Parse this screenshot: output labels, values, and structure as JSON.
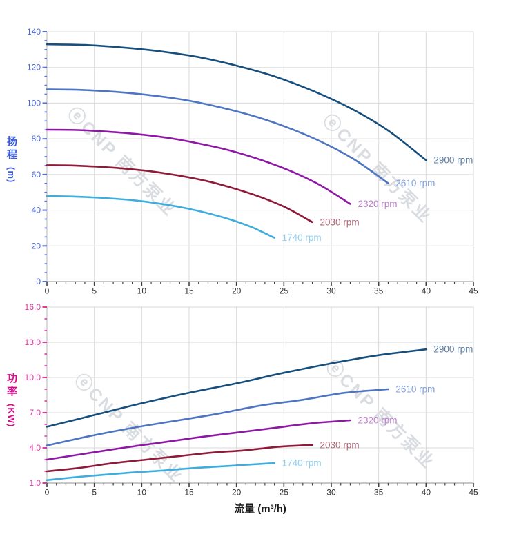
{
  "watermark": {
    "text": "ⓔCNP 南方泵业",
    "color": "rgba(128,138,152,0.30)"
  },
  "x_axis_title": "流量 (m³/h)",
  "chart_data": [
    {
      "type": "line",
      "name": "head-vs-flow-chart",
      "title": "",
      "xlabel": "流量 (m³/h)",
      "ylabel": "扬程 (m)",
      "y_title": "扬程",
      "y_unit": "(m)",
      "xlim": [
        0,
        45
      ],
      "ylim": [
        0,
        140
      ],
      "x_major_step": 5,
      "x_minor_step": 1,
      "y_major_step": 20,
      "y_minor_step": 5,
      "x_tick_labels": [
        "0",
        "5",
        "10",
        "15",
        "20",
        "25",
        "30",
        "35",
        "40",
        "45"
      ],
      "y_tick_labels": [
        "0",
        "20",
        "40",
        "60",
        "80",
        "100",
        "120",
        "140"
      ],
      "grid": true,
      "legend_position": "end-of-curve",
      "axis_color": "#3b5bd7",
      "tick_color": "#5873d6",
      "tick_label_color": "#4a66d8",
      "series": [
        {
          "name": "2900 rpm",
          "color": "#164e7d",
          "label_color": "#5c7da3",
          "points": [
            [
              0,
              133
            ],
            [
              4,
              132.6
            ],
            [
              8,
              131.2
            ],
            [
              12,
              129
            ],
            [
              16,
              125.8
            ],
            [
              20,
              121
            ],
            [
              24,
              115
            ],
            [
              28,
              107
            ],
            [
              32,
              97.2
            ],
            [
              36,
              84.6
            ],
            [
              40,
              68
            ]
          ]
        },
        {
          "name": "2610 rpm",
          "color": "#4e75c2",
          "label_color": "#82a0d8",
          "points": [
            [
              0,
              107.7
            ],
            [
              3.6,
              107.4
            ],
            [
              7.2,
              106.3
            ],
            [
              10.8,
              104.5
            ],
            [
              14.4,
              101.9
            ],
            [
              18,
              98
            ],
            [
              21.6,
              93.1
            ],
            [
              25.2,
              86.7
            ],
            [
              28.8,
              78.7
            ],
            [
              32.4,
              68.5
            ],
            [
              36,
              55.1
            ]
          ]
        },
        {
          "name": "2320 rpm",
          "color": "#8e17a5",
          "label_color": "#bc7fcb",
          "points": [
            [
              0,
              85.1
            ],
            [
              3.2,
              84.9
            ],
            [
              6.4,
              84
            ],
            [
              9.6,
              82.6
            ],
            [
              12.8,
              80.5
            ],
            [
              16,
              77.4
            ],
            [
              19.2,
              73.6
            ],
            [
              22.4,
              68.5
            ],
            [
              25.6,
              62.2
            ],
            [
              28.8,
              54.1
            ],
            [
              32,
              43.5
            ]
          ]
        },
        {
          "name": "2030 rpm",
          "color": "#8e1b39",
          "label_color": "#ab6878",
          "points": [
            [
              0,
              65.2
            ],
            [
              2.8,
              65
            ],
            [
              5.6,
              64.3
            ],
            [
              8.4,
              63.2
            ],
            [
              11.2,
              61.6
            ],
            [
              14,
              59.3
            ],
            [
              16.8,
              56.4
            ],
            [
              19.6,
              52.4
            ],
            [
              22.4,
              47.6
            ],
            [
              25.2,
              41.5
            ],
            [
              28,
              33.3
            ]
          ]
        },
        {
          "name": "1740 rpm",
          "color": "#3dadde",
          "label_color": "#8fcdee",
          "points": [
            [
              0,
              47.9
            ],
            [
              2.4,
              47.7
            ],
            [
              4.8,
              47.2
            ],
            [
              7.2,
              46.4
            ],
            [
              9.6,
              45.3
            ],
            [
              12,
              43.6
            ],
            [
              14.4,
              41.4
            ],
            [
              16.8,
              38.5
            ],
            [
              19.2,
              35
            ],
            [
              21.6,
              30.5
            ],
            [
              24,
              24.5
            ]
          ]
        }
      ]
    },
    {
      "type": "line",
      "name": "power-vs-flow-chart",
      "title": "",
      "xlabel": "流量 (m³/h)",
      "ylabel": "功率 (KW)",
      "y_title": "功率",
      "y_unit": "(KW)",
      "xlim": [
        0,
        45
      ],
      "ylim": [
        1,
        16
      ],
      "x_major_step": 5,
      "x_minor_step": 1,
      "y_major_step": 3,
      "y_minor_step": 1,
      "x_tick_labels": [
        "0",
        "5",
        "10",
        "15",
        "20",
        "25",
        "30",
        "35",
        "40",
        "45"
      ],
      "y_tick_labels": [
        "1.0",
        "4.0",
        "7.0",
        "10.0",
        "13.0",
        "16.0"
      ],
      "grid": true,
      "legend_position": "end-of-curve",
      "axis_color": "#cf1086",
      "tick_color": "#e0399f",
      "tick_label_color": "#e3389e",
      "series": [
        {
          "name": "2900 rpm",
          "color": "#164e7d",
          "label_color": "#5c7da3",
          "points": [
            [
              0,
              5.8
            ],
            [
              5,
              6.8
            ],
            [
              10,
              7.8
            ],
            [
              15,
              8.7
            ],
            [
              20,
              9.5
            ],
            [
              25,
              10.4
            ],
            [
              30,
              11.2
            ],
            [
              35,
              11.9
            ],
            [
              40,
              12.4
            ]
          ]
        },
        {
          "name": "2610 rpm",
          "color": "#4e75c2",
          "label_color": "#82a0d8",
          "points": [
            [
              0,
              4.2
            ],
            [
              4.5,
              5
            ],
            [
              9,
              5.7
            ],
            [
              13.5,
              6.3
            ],
            [
              18,
              6.9
            ],
            [
              22.5,
              7.6
            ],
            [
              27,
              8.1
            ],
            [
              31.5,
              8.7
            ],
            [
              36,
              9
            ]
          ]
        },
        {
          "name": "2320 rpm",
          "color": "#8e17a5",
          "label_color": "#bc7fcb",
          "points": [
            [
              0,
              3
            ],
            [
              4,
              3.5
            ],
            [
              8,
              4
            ],
            [
              12,
              4.45
            ],
            [
              16,
              4.9
            ],
            [
              20,
              5.3
            ],
            [
              24,
              5.7
            ],
            [
              28,
              6.1
            ],
            [
              32,
              6.35
            ]
          ]
        },
        {
          "name": "2030 rpm",
          "color": "#8e1b39",
          "label_color": "#ab6878",
          "points": [
            [
              0,
              2
            ],
            [
              3.5,
              2.3
            ],
            [
              7,
              2.7
            ],
            [
              10.5,
              3
            ],
            [
              14,
              3.3
            ],
            [
              17.5,
              3.6
            ],
            [
              21,
              3.8
            ],
            [
              24.5,
              4.1
            ],
            [
              28,
              4.25
            ]
          ]
        },
        {
          "name": "1740 rpm",
          "color": "#3dadde",
          "label_color": "#8fcdee",
          "points": [
            [
              0,
              1.25
            ],
            [
              3,
              1.5
            ],
            [
              6,
              1.7
            ],
            [
              9,
              1.9
            ],
            [
              12,
              2.05
            ],
            [
              15,
              2.25
            ],
            [
              18,
              2.4
            ],
            [
              21,
              2.55
            ],
            [
              24,
              2.7
            ]
          ]
        }
      ]
    }
  ]
}
